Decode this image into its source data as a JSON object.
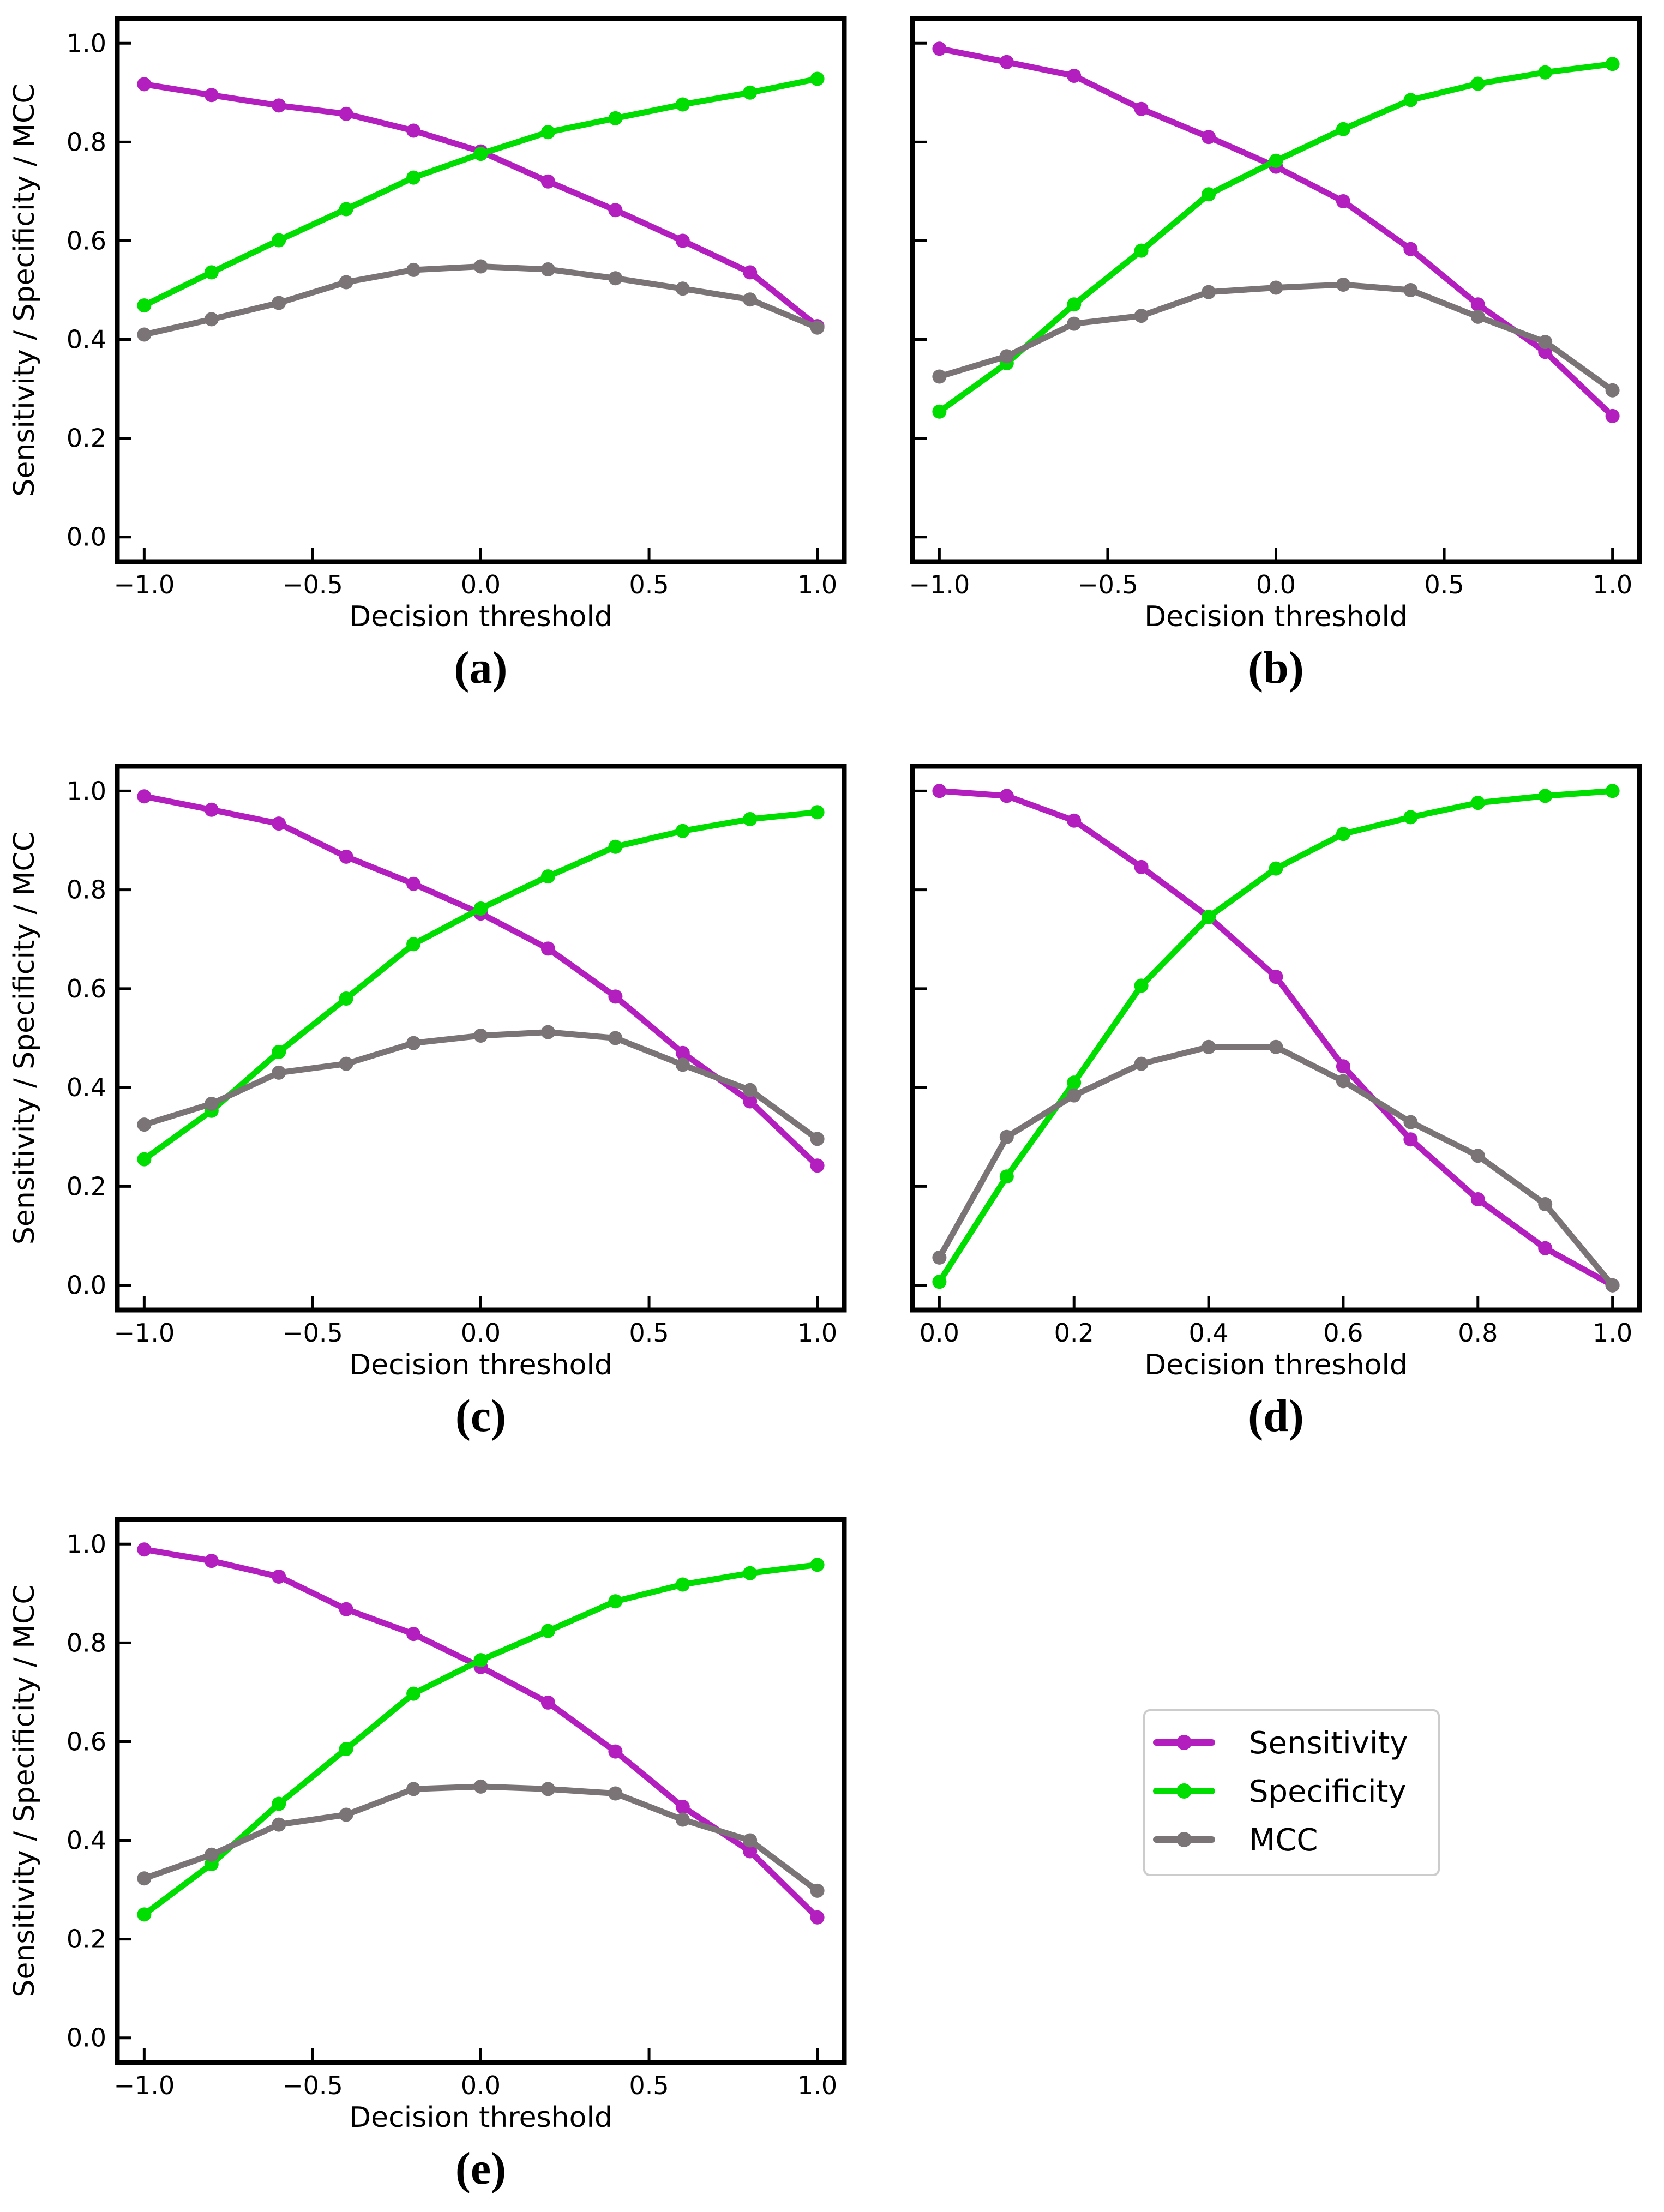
{
  "colors": {
    "sensitivity": "#b31fbe",
    "specificity": "#00dd00",
    "mcc": "#7a7476"
  },
  "legend": [
    "Sensitivity",
    "Specificity",
    "MCC"
  ],
  "panel_labels": [
    "(a)",
    "(b)",
    "(c)",
    "(d)",
    "(e)"
  ],
  "chart_data": [
    {
      "type": "line",
      "panel": "(a)",
      "xlabel": "Decision threshold",
      "ylabel": "Sensitivity / Specificity / MCC",
      "xlim": [
        -1.08,
        1.08
      ],
      "ylim": [
        -0.05,
        1.05
      ],
      "xticks": [
        -1.0,
        -0.5,
        0.0,
        0.5,
        1.0
      ],
      "xtick_labels": [
        "−1.0",
        "−0.5",
        "0.0",
        "0.5",
        "1.0"
      ],
      "yticks": [
        0.0,
        0.2,
        0.4,
        0.6,
        0.8,
        1.0
      ],
      "ytick_labels": [
        "0.0",
        "0.2",
        "0.4",
        "0.6",
        "0.8",
        "1.0"
      ],
      "x": [
        -1.0,
        -0.8,
        -0.6,
        -0.4,
        -0.2,
        0.0,
        0.2,
        0.4,
        0.6,
        0.8,
        1.0
      ],
      "series": [
        {
          "name": "Sensitivity",
          "values": [
            0.917,
            0.895,
            0.874,
            0.857,
            0.823,
            0.781,
            0.72,
            0.662,
            0.6,
            0.536,
            0.427
          ]
        },
        {
          "name": "Specificity",
          "values": [
            0.469,
            0.536,
            0.601,
            0.664,
            0.728,
            0.776,
            0.82,
            0.848,
            0.876,
            0.9,
            0.928
          ]
        },
        {
          "name": "MCC",
          "values": [
            0.41,
            0.441,
            0.474,
            0.516,
            0.541,
            0.548,
            0.542,
            0.524,
            0.503,
            0.481,
            0.424
          ]
        }
      ]
    },
    {
      "type": "line",
      "panel": "(b)",
      "xlabel": "Decision threshold",
      "ylabel": "",
      "xlim": [
        -1.08,
        1.08
      ],
      "ylim": [
        -0.05,
        1.05
      ],
      "xticks": [
        -1.0,
        -0.5,
        0.0,
        0.5,
        1.0
      ],
      "xtick_labels": [
        "−1.0",
        "−0.5",
        "0.0",
        "0.5",
        "1.0"
      ],
      "yticks": [
        0.0,
        0.2,
        0.4,
        0.6,
        0.8,
        1.0
      ],
      "ytick_labels": [],
      "x": [
        -1.0,
        -0.8,
        -0.6,
        -0.4,
        -0.2,
        0.0,
        0.2,
        0.4,
        0.6,
        0.8,
        1.0
      ],
      "series": [
        {
          "name": "Sensitivity",
          "values": [
            0.989,
            0.962,
            0.934,
            0.867,
            0.81,
            0.75,
            0.68,
            0.583,
            0.471,
            0.375,
            0.245
          ]
        },
        {
          "name": "Specificity",
          "values": [
            0.254,
            0.352,
            0.471,
            0.58,
            0.694,
            0.762,
            0.826,
            0.885,
            0.918,
            0.941,
            0.958
          ]
        },
        {
          "name": "MCC",
          "values": [
            0.325,
            0.366,
            0.432,
            0.448,
            0.496,
            0.505,
            0.511,
            0.5,
            0.446,
            0.395,
            0.297
          ]
        }
      ]
    },
    {
      "type": "line",
      "panel": "(c)",
      "xlabel": "Decision threshold",
      "ylabel": "Sensitivity / Specificity / MCC",
      "xlim": [
        -1.08,
        1.08
      ],
      "ylim": [
        -0.05,
        1.05
      ],
      "xticks": [
        -1.0,
        -0.5,
        0.0,
        0.5,
        1.0
      ],
      "xtick_labels": [
        "−1.0",
        "−0.5",
        "0.0",
        "0.5",
        "1.0"
      ],
      "yticks": [
        0.0,
        0.2,
        0.4,
        0.6,
        0.8,
        1.0
      ],
      "ytick_labels": [
        "0.0",
        "0.2",
        "0.4",
        "0.6",
        "0.8",
        "1.0"
      ],
      "x": [
        -1.0,
        -0.8,
        -0.6,
        -0.4,
        -0.2,
        0.0,
        0.2,
        0.4,
        0.6,
        0.8,
        1.0
      ],
      "series": [
        {
          "name": "Sensitivity",
          "values": [
            0.989,
            0.962,
            0.934,
            0.867,
            0.812,
            0.752,
            0.681,
            0.584,
            0.47,
            0.372,
            0.242
          ]
        },
        {
          "name": "Specificity",
          "values": [
            0.255,
            0.353,
            0.472,
            0.58,
            0.69,
            0.762,
            0.827,
            0.887,
            0.919,
            0.943,
            0.957
          ]
        },
        {
          "name": "MCC",
          "values": [
            0.325,
            0.367,
            0.43,
            0.448,
            0.49,
            0.505,
            0.512,
            0.5,
            0.446,
            0.395,
            0.296
          ]
        }
      ]
    },
    {
      "type": "line",
      "panel": "(d)",
      "xlabel": "Decision threshold",
      "ylabel": "",
      "xlim": [
        -0.04,
        1.04
      ],
      "ylim": [
        -0.05,
        1.05
      ],
      "xticks": [
        0.0,
        0.2,
        0.4,
        0.6,
        0.8,
        1.0
      ],
      "xtick_labels": [
        "0.0",
        "0.2",
        "0.4",
        "0.6",
        "0.8",
        "1.0"
      ],
      "yticks": [
        0.0,
        0.2,
        0.4,
        0.6,
        0.8,
        1.0
      ],
      "ytick_labels": [],
      "x": [
        0.0,
        0.1,
        0.2,
        0.3,
        0.4,
        0.5,
        0.6,
        0.7,
        0.8,
        0.9,
        1.0
      ],
      "series": [
        {
          "name": "Sensitivity",
          "values": [
            1.0,
            0.99,
            0.94,
            0.846,
            0.745,
            0.624,
            0.443,
            0.295,
            0.174,
            0.075,
            0.0
          ]
        },
        {
          "name": "Specificity",
          "values": [
            0.007,
            0.22,
            0.41,
            0.606,
            0.745,
            0.843,
            0.913,
            0.947,
            0.976,
            0.99,
            1.0
          ]
        },
        {
          "name": "MCC",
          "values": [
            0.056,
            0.3,
            0.384,
            0.448,
            0.482,
            0.482,
            0.413,
            0.33,
            0.262,
            0.164,
            0.0
          ]
        }
      ]
    },
    {
      "type": "line",
      "panel": "(e)",
      "xlabel": "Decision threshold",
      "ylabel": "Sensitivity / Specificity / MCC",
      "xlim": [
        -1.08,
        1.08
      ],
      "ylim": [
        -0.05,
        1.05
      ],
      "xticks": [
        -1.0,
        -0.5,
        0.0,
        0.5,
        1.0
      ],
      "xtick_labels": [
        "−1.0",
        "−0.5",
        "0.0",
        "0.5",
        "1.0"
      ],
      "yticks": [
        0.0,
        0.2,
        0.4,
        0.6,
        0.8,
        1.0
      ],
      "ytick_labels": [
        "0.0",
        "0.2",
        "0.4",
        "0.6",
        "0.8",
        "1.0"
      ],
      "x": [
        -1.0,
        -0.8,
        -0.6,
        -0.4,
        -0.2,
        0.0,
        0.2,
        0.4,
        0.6,
        0.8,
        1.0
      ],
      "series": [
        {
          "name": "Sensitivity",
          "values": [
            0.989,
            0.966,
            0.934,
            0.868,
            0.818,
            0.751,
            0.679,
            0.58,
            0.468,
            0.378,
            0.244
          ]
        },
        {
          "name": "Specificity",
          "values": [
            0.25,
            0.352,
            0.474,
            0.585,
            0.697,
            0.765,
            0.824,
            0.884,
            0.918,
            0.941,
            0.958
          ]
        },
        {
          "name": "MCC",
          "values": [
            0.323,
            0.371,
            0.432,
            0.452,
            0.504,
            0.509,
            0.504,
            0.495,
            0.442,
            0.4,
            0.298
          ]
        }
      ]
    }
  ]
}
